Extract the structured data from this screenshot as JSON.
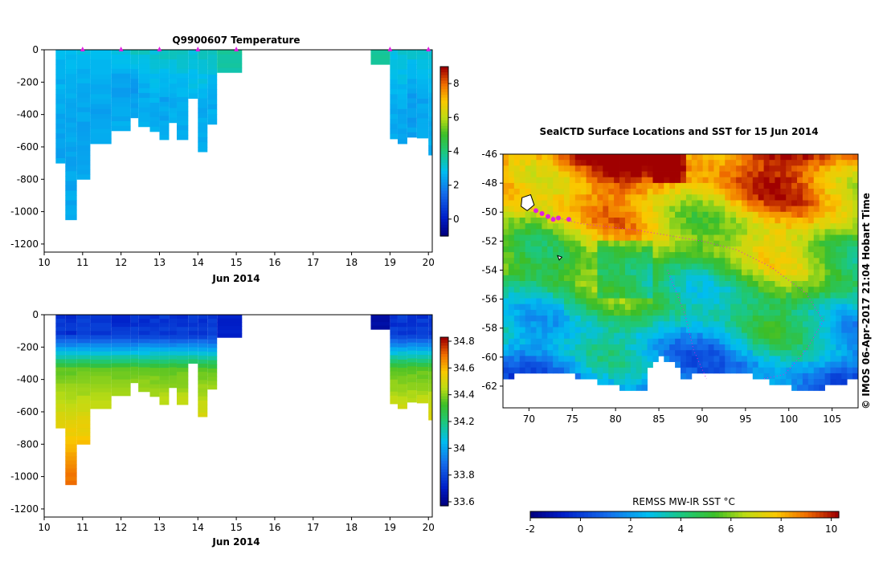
{
  "chart_data": [
    {
      "type": "heatmap",
      "id": "temp_section",
      "title": "Q9900607  Temperature",
      "xlabel": "Jun 2014",
      "ylabel": "",
      "xlim": [
        10,
        20.1
      ],
      "ylim": [
        -1250,
        0
      ],
      "xticks": [
        "10",
        "11",
        "12",
        "13",
        "14",
        "15",
        "16",
        "17",
        "18",
        "19",
        "20"
      ],
      "yticks": [
        "0",
        "-200",
        "-400",
        "-600",
        "-800",
        "-1000",
        "-1200"
      ],
      "colorbar": {
        "ticks": [
          "0",
          "2",
          "4",
          "6",
          "8"
        ],
        "range": [
          -1,
          9
        ]
      },
      "surface_markers_x": [
        11,
        12,
        13,
        14,
        15,
        19,
        20
      ],
      "profiles": [
        {
          "x0": 10.3,
          "x1": 10.55,
          "depth": 700,
          "values": [
            2.8,
            2.6,
            2.5,
            2.4,
            2.4
          ]
        },
        {
          "x0": 10.55,
          "x1": 10.85,
          "depth": 1050,
          "values": [
            2.7,
            2.5,
            2.4,
            2.4,
            2.5
          ]
        },
        {
          "x0": 10.85,
          "x1": 11.2,
          "depth": 800,
          "values": [
            2.8,
            2.5,
            2.4,
            2.4,
            2.4
          ]
        },
        {
          "x0": 11.2,
          "x1": 11.75,
          "depth": 580,
          "values": [
            2.9,
            2.6,
            2.4,
            2.4
          ]
        },
        {
          "x0": 11.75,
          "x1": 12.25,
          "depth": 500,
          "values": [
            3.0,
            2.3,
            2.4,
            2.5
          ]
        },
        {
          "x0": 12.25,
          "x1": 12.45,
          "depth": 420,
          "values": [
            3.3,
            2.2,
            2.5
          ]
        },
        {
          "x0": 12.45,
          "x1": 12.75,
          "depth": 475,
          "values": [
            3.2,
            2.5,
            2.5
          ]
        },
        {
          "x0": 12.75,
          "x1": 13.0,
          "depth": 505,
          "values": [
            3.1,
            2.6,
            2.5
          ]
        },
        {
          "x0": 13.0,
          "x1": 13.25,
          "depth": 555,
          "values": [
            3.3,
            2.4,
            2.5
          ]
        },
        {
          "x0": 13.25,
          "x1": 13.45,
          "depth": 450,
          "values": [
            3.3,
            2.6,
            2.5
          ]
        },
        {
          "x0": 13.45,
          "x1": 13.75,
          "depth": 555,
          "values": [
            3.2,
            2.6,
            2.5
          ]
        },
        {
          "x0": 13.75,
          "x1": 14.0,
          "depth": 300,
          "values": [
            3.1,
            2.7
          ]
        },
        {
          "x0": 14.0,
          "x1": 14.25,
          "depth": 630,
          "values": [
            3.4,
            2.5,
            2.5
          ]
        },
        {
          "x0": 14.25,
          "x1": 14.5,
          "depth": 460,
          "values": [
            3.3,
            2.6,
            2.5
          ]
        },
        {
          "x0": 14.5,
          "x1": 15.15,
          "depth": 140,
          "values": [
            3.6
          ]
        },
        {
          "x0": 18.5,
          "x1": 19.0,
          "depth": 90,
          "values": [
            3.8
          ]
        },
        {
          "x0": 19.0,
          "x1": 19.2,
          "depth": 550,
          "values": [
            3.0,
            2.5,
            2.4
          ]
        },
        {
          "x0": 19.2,
          "x1": 19.45,
          "depth": 580,
          "values": [
            3.2,
            2.5,
            2.4
          ]
        },
        {
          "x0": 19.45,
          "x1": 19.7,
          "depth": 540,
          "values": [
            3.1,
            2.2,
            2.4
          ]
        },
        {
          "x0": 19.7,
          "x1": 20.0,
          "depth": 545,
          "values": [
            3.0,
            2.4,
            2.5
          ]
        },
        {
          "x0": 20.0,
          "x1": 20.1,
          "depth": 650,
          "values": [
            3.1,
            2.6,
            2.5
          ]
        }
      ]
    },
    {
      "type": "heatmap",
      "id": "sal_section",
      "title": "",
      "xlabel": "Jun 2014",
      "ylabel": "",
      "xlim": [
        10,
        20.1
      ],
      "ylim": [
        -1250,
        0
      ],
      "xticks": [
        "10",
        "11",
        "12",
        "13",
        "14",
        "15",
        "16",
        "17",
        "18",
        "19",
        "20"
      ],
      "yticks": [
        "0",
        "-200",
        "-400",
        "-600",
        "-800",
        "-1000",
        "-1200"
      ],
      "colorbar": {
        "ticks": [
          "34.8",
          "34.6",
          "34.4",
          "34.2",
          "34",
          "33.8",
          "33.6"
        ],
        "range": [
          33.57,
          34.83
        ]
      }
    },
    {
      "type": "heatmap",
      "id": "sst_map",
      "title": "SealCTD Surface Locations and SST for 15 Jun 2014",
      "xlim": [
        67,
        108
      ],
      "ylim": [
        -63.5,
        -46
      ],
      "xticks": [
        "70",
        "75",
        "80",
        "85",
        "90",
        "95",
        "100",
        "105"
      ],
      "yticks": [
        "-46",
        "-48",
        "-50",
        "-52",
        "-54",
        "-56",
        "-58",
        "-60",
        "-62"
      ],
      "colorbar": {
        "label": "REMSS MW-IR SST °C",
        "ticks": [
          "-2",
          "0",
          "2",
          "4",
          "6",
          "8",
          "10"
        ],
        "range": [
          -2,
          10.3
        ]
      },
      "surface_locations": [
        [
          69.6,
          -49.6
        ],
        [
          70.8,
          -49.9
        ],
        [
          71.5,
          -50.1
        ],
        [
          72.2,
          -50.3
        ],
        [
          72.8,
          -50.5
        ],
        [
          73.4,
          -50.4
        ],
        [
          74.6,
          -50.5
        ]
      ]
    }
  ],
  "side_caption": "© IMOS 06-Apr-2017 21:04 Hobart Time"
}
